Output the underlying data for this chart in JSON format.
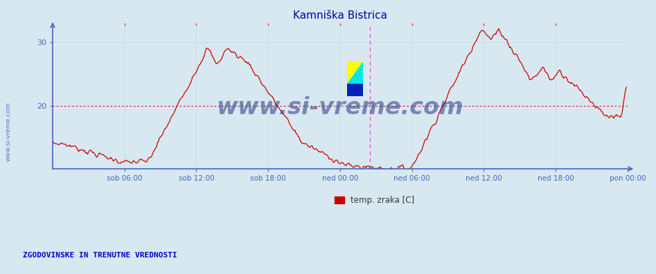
{
  "title": "Kamniška Bistrica",
  "ylabel_side_text": "www.si-vreme.com",
  "bottom_left_text": "ZGODOVINSKE IN TRENUTNE VREDNOSTI",
  "legend_label": "temp. zraka [C]",
  "legend_color": "#cc0000",
  "bg_color": "#d8e8f0",
  "plot_bg_color": "#d8e8f0",
  "grid_color": "#b8c8d8",
  "axis_color": "#4466bb",
  "title_color": "#0000aa",
  "title_fontsize": 11,
  "ylim_bottom": 10,
  "ylim_top": 33,
  "yticks": [
    20,
    30
  ],
  "hline_y": 20,
  "hline_color": "#cc0000",
  "vline_color": "#dd44dd",
  "n_points": 576,
  "x_tick_labels": [
    "sob 06:00",
    "sob 12:00",
    "sob 18:00",
    "ned 00:00",
    "ned 06:00",
    "ned 12:00",
    "ned 18:00",
    "pon 00:00"
  ],
  "x_tick_positions": [
    72,
    144,
    216,
    288,
    360,
    432,
    504,
    576
  ],
  "vline_x_positions": [
    318,
    576
  ],
  "curve_color": "#cc0000",
  "curve_linewidth": 0.9,
  "watermark_text": "www.si-vreme.com",
  "watermark_color": "#1a2a7a",
  "watermark_fontsize": 24,
  "watermark_alpha": 0.5
}
